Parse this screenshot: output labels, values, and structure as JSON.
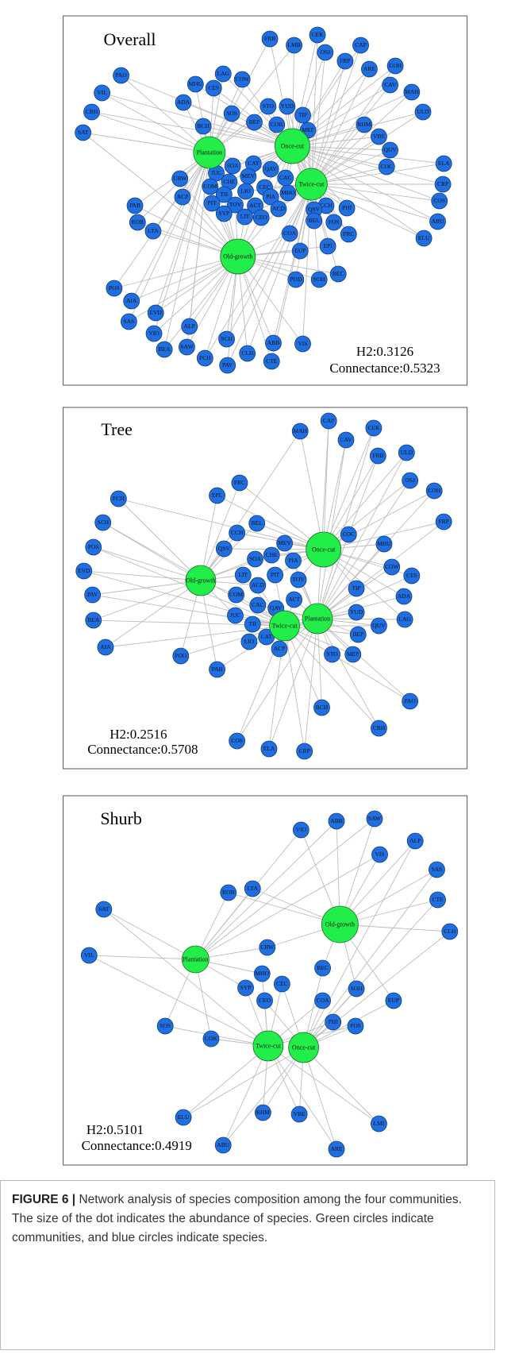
{
  "panels": [
    {
      "title": "Overall",
      "communities": [
        "Plantation",
        "Once-cut",
        "Twice-cut",
        "Old-growth"
      ],
      "species": [
        "FRB",
        "LMB",
        "CEK",
        "OSJ",
        "FRP",
        "CAP",
        "ARE",
        "COH",
        "CAV",
        "MAH",
        "ULD",
        "PAO",
        "VIL",
        "CRH",
        "SAT",
        "MHU",
        "LAG",
        "COW",
        "CES",
        "ADA",
        "SOS",
        "STO",
        "YUD",
        "TIP",
        "BEP",
        "COK",
        "MEF",
        "RHM",
        "VBE",
        "QUV",
        "COC",
        "BCH",
        "ELA",
        "CRP",
        "COS",
        "ABU",
        "ELU",
        "CRW",
        "SOA",
        "CAT",
        "QAV",
        "CAC",
        "JUC",
        "CHE",
        "MEV",
        "COM",
        "TII",
        "LIO",
        "CEC",
        "MHO",
        "PIA",
        "ACP",
        "PIT",
        "TOV",
        "ACT",
        "ACD",
        "SYP",
        "LIT",
        "CEO",
        "CCH",
        "PHI",
        "QSV",
        "BEL",
        "FOS",
        "FRC",
        "PAB",
        "ROB",
        "LTA",
        "COA",
        "EUP",
        "EPI",
        "BEC",
        "POD",
        "SOH",
        "POS",
        "AIA",
        "EVD",
        "SAS",
        "VIO",
        "ALP",
        "BEA",
        "SAW",
        "FCH",
        "SCH",
        "PAV",
        "CLH",
        "ABB",
        "CTE",
        "VIS"
      ],
      "h2": "H2:0.3126",
      "connectance": "Connectance:0.5323"
    },
    {
      "title": "Tree",
      "communities": [
        "Once-cut",
        "Old-growth",
        "Plantation",
        "Twice-cut"
      ],
      "species": [
        "MAH",
        "CAP",
        "CAV",
        "CEK",
        "FRB",
        "ULD",
        "OSJ",
        "COH",
        "FRP",
        "FCH",
        "EPL",
        "FRC",
        "SCH",
        "POS",
        "BEL",
        "CCH",
        "QSV",
        "MEV",
        "CHE",
        "SOA",
        "COC",
        "MHU",
        "PIA",
        "EVD",
        "LIT",
        "PIT",
        "TOV",
        "ACD",
        "COW",
        "CES",
        "COM",
        "ACT",
        "TIP",
        "ADA",
        "PAV",
        "CAC",
        "QAV",
        "YUD",
        "LAG",
        "QUV",
        "BEA",
        "JUC",
        "TII",
        "BEP",
        "CAT",
        "LIO",
        "ACP",
        "STO",
        "MEF",
        "AIA",
        "POO",
        "PAB",
        "BCH",
        "PAO",
        "CRH",
        "COS",
        "ELA",
        "CRP"
      ],
      "h2": "H2:0.2516",
      "connectance": "Connectance:0.5708"
    },
    {
      "title": "Shurb",
      "communities": [
        "Old-growth",
        "Plantation",
        "Twice-cut",
        "Once-cut"
      ],
      "species": [
        "VIO",
        "ABB",
        "SAW",
        "VIS",
        "ALP",
        "SAS",
        "CTE",
        "CLH",
        "ROB",
        "LTA",
        "SAT",
        "VIL",
        "CRW",
        "BEC",
        "MHO",
        "CEC",
        "SYP",
        "SOH",
        "CEO",
        "COA",
        "EUP",
        "PHI",
        "FOS",
        "SOS",
        "COK",
        "ELU",
        "RHM",
        "VBE",
        "LMI",
        "ABU",
        "ARE"
      ],
      "h2": "H2:0.5101",
      "connectance": "Connectance:0.4919"
    }
  ],
  "caption": {
    "label": "FIGURE 6 |",
    "text": "Network analysis of species composition among the four communities. The size of the dot indicates the abundance of species. Green circles indicate communities, and blue circles indicate species."
  }
}
